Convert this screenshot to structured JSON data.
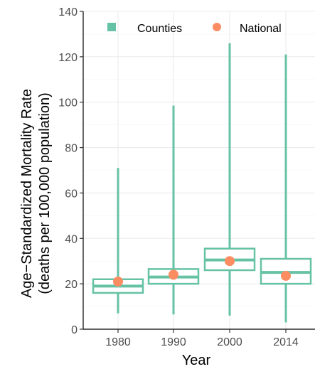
{
  "chart_data": {
    "type": "box",
    "xlabel": "Year",
    "ylabel_lines": [
      "Age−Standardized Mortality Rate",
      "(deaths per 100,000 population)"
    ],
    "categories": [
      "1980",
      "1990",
      "2000",
      "2014"
    ],
    "ylim": [
      0,
      140
    ],
    "yticks": [
      0,
      20,
      40,
      60,
      80,
      100,
      120,
      140
    ],
    "grid": true,
    "legend": {
      "placement": "top",
      "items": [
        {
          "label": "Counties",
          "color": "#66C2A5",
          "symbol": "square"
        },
        {
          "label": "National",
          "color": "#FC8D62",
          "symbol": "circle"
        }
      ]
    },
    "series": [
      {
        "name": "Counties",
        "color": "#66C2A5",
        "boxes": [
          {
            "min": 7,
            "q1": 16,
            "median": 19,
            "q3": 22,
            "max": 71
          },
          {
            "min": 6.5,
            "q1": 20,
            "median": 23,
            "q3": 26.5,
            "max": 98.5
          },
          {
            "min": 6,
            "q1": 26,
            "median": 30.5,
            "q3": 35.5,
            "max": 126
          },
          {
            "min": 3,
            "q1": 20,
            "median": 25,
            "q3": 31,
            "max": 121
          }
        ]
      },
      {
        "name": "National",
        "color": "#FC8D62",
        "values": [
          21,
          24,
          30,
          23.5
        ]
      }
    ]
  }
}
